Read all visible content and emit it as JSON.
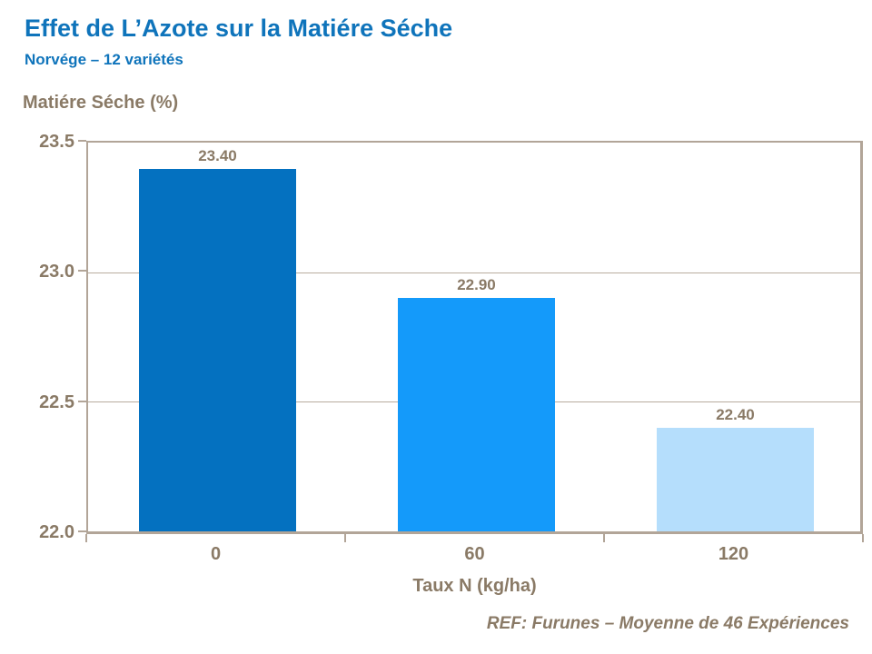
{
  "header": {
    "title": "Effet de L’Azote sur la Matiére Séche",
    "subtitle": "Norvége – 12 variétés"
  },
  "footer": {
    "reference": "REF: Furunes – Moyenne de 46 Expériences"
  },
  "chart_data": {
    "type": "bar",
    "title": "Effet de L’Azote sur la Matiére Séche",
    "subtitle": "Norvége – 12 variétés",
    "categories": [
      "0",
      "60",
      "120"
    ],
    "values": [
      23.4,
      22.9,
      22.4
    ],
    "value_labels": [
      "23.40",
      "22.90",
      "22.40"
    ],
    "bar_colors": [
      "#0471C0",
      "#149AFA",
      "#B5DEFC"
    ],
    "xlabel": "Taux N (kg/ha)",
    "ylabel": "Matiére Séche (%)",
    "ylim": [
      22.0,
      23.5
    ],
    "yticks": [
      23.5,
      23.0,
      22.5,
      22.0
    ],
    "ytick_labels": [
      "23.5",
      "23.0",
      "22.5",
      "22.0"
    ],
    "grid": "horizontal",
    "legend": "none"
  },
  "colors": {
    "title_blue": "#0F74BB",
    "text_brown": "#8A7A66",
    "axis_taupe": "#B2A598"
  }
}
